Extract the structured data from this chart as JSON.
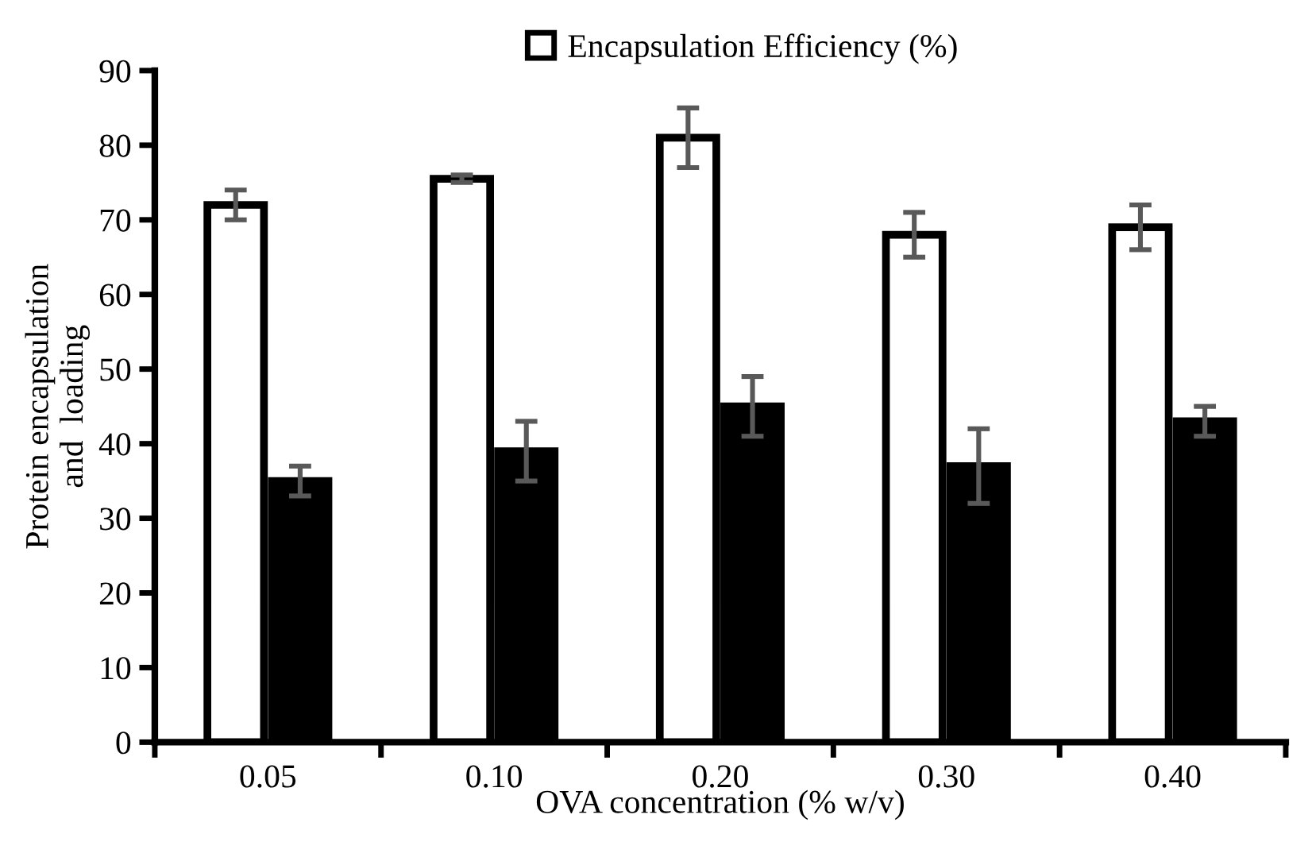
{
  "chart_data": {
    "type": "bar",
    "categories": [
      "0.05",
      "0.10",
      "0.20",
      "0.30",
      "0.40"
    ],
    "xlabel": "OVA concentration (% w/v)",
    "ylabel": "Protein encapsulation\nand  loading",
    "series": [
      {
        "name": "Encapsulation Efficiency (%)",
        "color": "#ffffff",
        "values": [
          72,
          75.5,
          81,
          68,
          69
        ],
        "errors": [
          2,
          0.5,
          4,
          3,
          3
        ]
      },
      {
        "color": "#000000",
        "values": [
          35,
          39,
          45,
          37,
          43
        ],
        "errors": [
          2,
          4,
          4,
          5,
          2
        ]
      }
    ],
    "ylim": [
      0,
      90
    ],
    "yticks": [
      0,
      10,
      20,
      30,
      40,
      50,
      60,
      70,
      80,
      90
    ],
    "grid": false,
    "legend": "top"
  }
}
